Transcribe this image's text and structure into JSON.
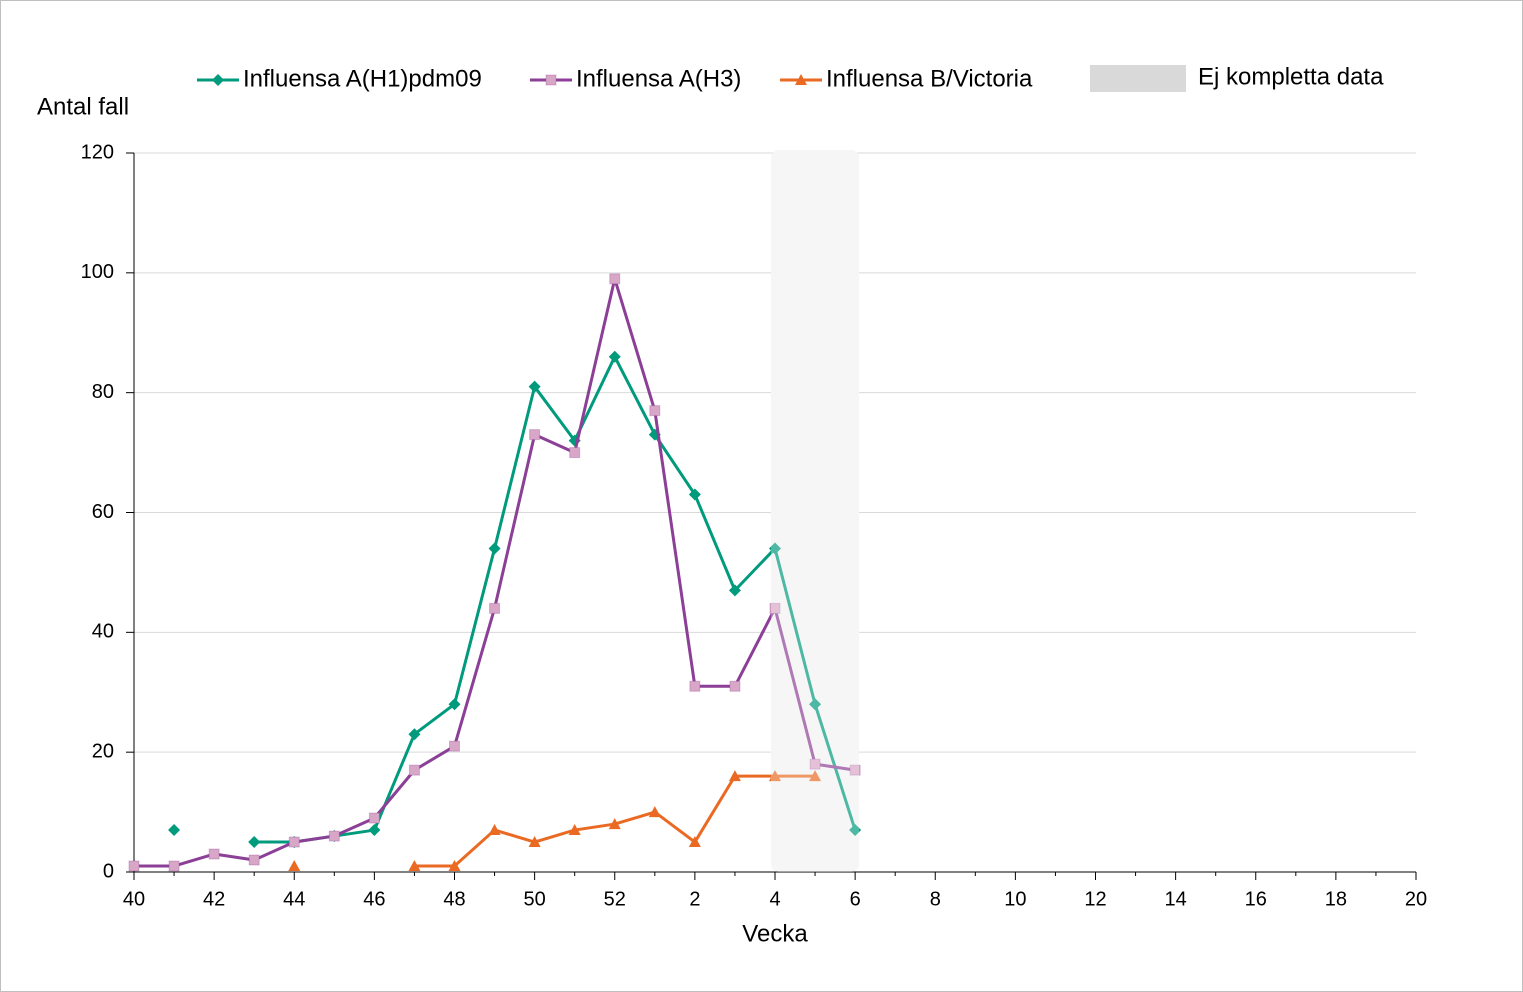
{
  "chart_data": {
    "type": "line",
    "x_label": "Vecka",
    "y_label": "Antal fall",
    "categories": [
      40,
      null,
      42,
      null,
      44,
      null,
      46,
      null,
      48,
      null,
      50,
      null,
      52,
      null,
      2,
      null,
      4,
      null,
      6,
      null,
      8,
      null,
      10,
      null,
      12,
      null,
      14,
      null,
      16,
      null,
      18,
      null,
      20
    ],
    "series": [
      {
        "name": "Influensa A(H1)pdm09",
        "color": "#009a7c",
        "marker": "diamond",
        "values": [
          null,
          7,
          null,
          5,
          5,
          6,
          7,
          23,
          28,
          54,
          81,
          72,
          86,
          73,
          63,
          47,
          54,
          28,
          7,
          null,
          null,
          null,
          null,
          null,
          null,
          null,
          null,
          null,
          null,
          null,
          null,
          null,
          null
        ]
      },
      {
        "name": "Influensa A(H3)",
        "color": "#8c3f96",
        "marker": "square",
        "marker_color": "#d8a6c6",
        "values": [
          1,
          1,
          3,
          2,
          5,
          6,
          9,
          17,
          21,
          44,
          73,
          70,
          99,
          77,
          31,
          31,
          44,
          18,
          17,
          null,
          null,
          null,
          null,
          null,
          null,
          null,
          null,
          null,
          null,
          null,
          null,
          null,
          null
        ]
      },
      {
        "name": "Influensa B/Victoria",
        "color": "#ea6a24",
        "marker": "triangle",
        "values": [
          null,
          null,
          null,
          null,
          1,
          null,
          null,
          1,
          1,
          7,
          5,
          7,
          8,
          10,
          5,
          16,
          16,
          16,
          null,
          null,
          null,
          null,
          null,
          null,
          null,
          null,
          null,
          null,
          null,
          null,
          null,
          null,
          null
        ]
      }
    ],
    "shade": {
      "name": "Ej kompletta data",
      "from": 4,
      "to": 6,
      "color": "#f2f2f2"
    },
    "ylim": [
      0,
      120
    ],
    "yticks": [
      0,
      20,
      40,
      60,
      80,
      100,
      120
    ],
    "grid": true
  }
}
